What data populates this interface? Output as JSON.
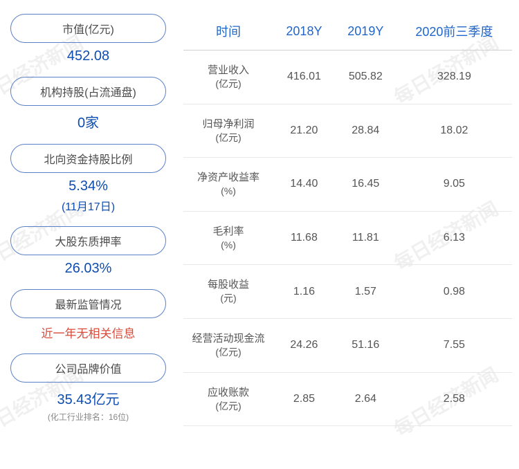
{
  "watermark_text": "每日经济新闻",
  "left_metrics": [
    {
      "label": "市值(亿元)",
      "value": "452.08",
      "sub": null,
      "note": null,
      "value_class": "metric-value"
    },
    {
      "label": "机构持股(占流通盘)",
      "value": "0家",
      "sub": null,
      "note": null,
      "value_class": "metric-value"
    },
    {
      "label": "北向资金持股比例",
      "value": "5.34%",
      "sub": "(11月17日)",
      "note": null,
      "value_class": "metric-value"
    },
    {
      "label": "大股东质押率",
      "value": "26.03%",
      "sub": null,
      "note": null,
      "value_class": "metric-value"
    },
    {
      "label": "最新监管情况",
      "value": "近一年无相关信息",
      "sub": null,
      "note": null,
      "value_class": "red-text"
    },
    {
      "label": "公司品牌价值",
      "value": "35.43亿元",
      "sub": null,
      "note": "(化工行业排名：16位)",
      "value_class": "metric-value"
    }
  ],
  "table": {
    "headers": [
      "时间",
      "2018Y",
      "2019Y",
      "2020前三季度"
    ],
    "rows": [
      {
        "label": "营业收入",
        "unit": "(亿元)",
        "values": [
          "416.01",
          "505.82",
          "328.19"
        ]
      },
      {
        "label": "归母净利润",
        "unit": "(亿元)",
        "values": [
          "21.20",
          "28.84",
          "18.02"
        ]
      },
      {
        "label": "净资产收益率",
        "unit": "(%)",
        "values": [
          "14.40",
          "16.45",
          "9.05"
        ]
      },
      {
        "label": "毛利率",
        "unit": "(%)",
        "values": [
          "11.68",
          "11.81",
          "6.13"
        ]
      },
      {
        "label": "每股收益",
        "unit": "(元)",
        "values": [
          "1.16",
          "1.57",
          "0.98"
        ]
      },
      {
        "label": "经营活动现金流",
        "unit": "(亿元)",
        "values": [
          "24.26",
          "51.16",
          "7.55"
        ]
      },
      {
        "label": "应收账款",
        "unit": "(亿元)",
        "values": [
          "2.85",
          "2.64",
          "2.58"
        ]
      }
    ]
  }
}
